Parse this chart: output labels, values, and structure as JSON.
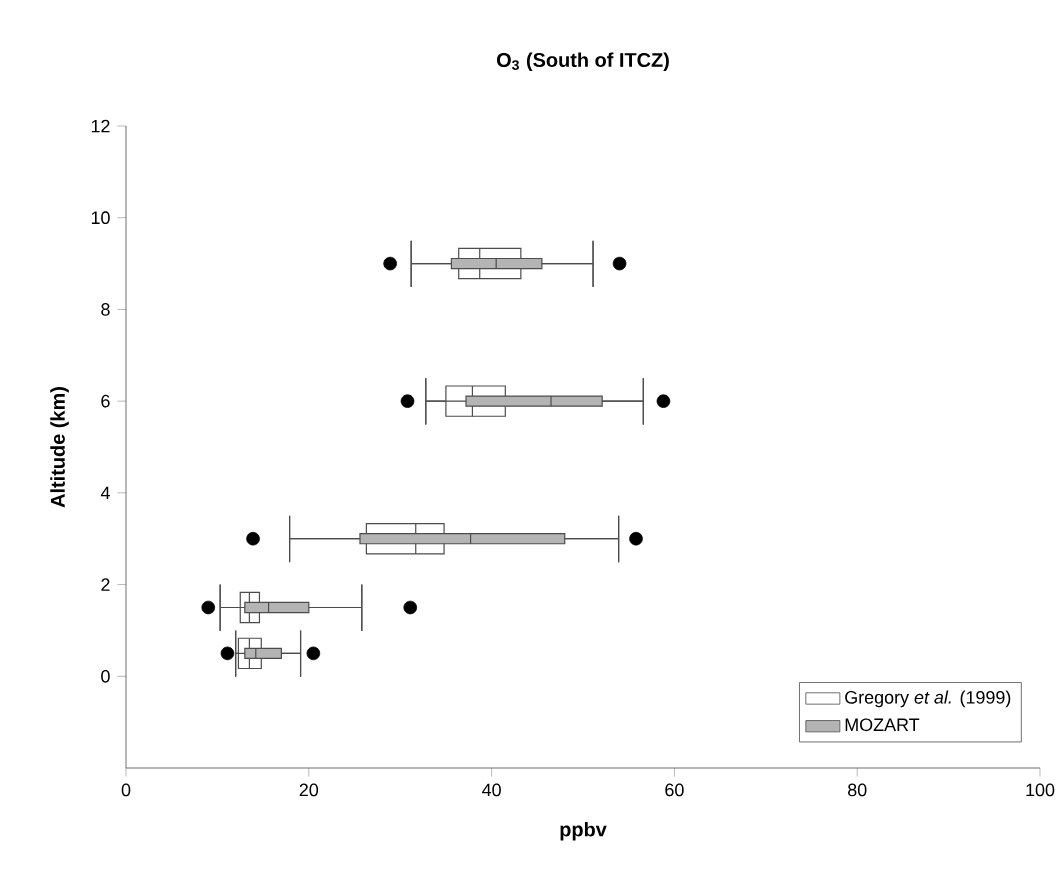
{
  "chart_data": {
    "type": "box",
    "orientation": "horizontal",
    "title": "O$_{3}$ (South of ITCZ)",
    "xlabel": "ppbv",
    "ylabel": "Altitude (km)",
    "xlim": [
      0,
      100
    ],
    "xticks": [
      0,
      20,
      40,
      60,
      80,
      100
    ],
    "ylim": [
      -2,
      12
    ],
    "yticks": [
      0,
      2,
      4,
      6,
      8,
      10,
      12
    ],
    "legend": "bottom right",
    "series": [
      {
        "name": "Gregory *et al.* (1999)",
        "color": "#ffffff",
        "x": [
          9,
          6,
          3,
          1.5,
          0.5
        ],
        "boxes": [
          {
            "low": 31.2,
            "q1": 36.4,
            "median": 38.7,
            "q3": 43.2,
            "high": 51.1,
            "outliers": [
              28.9,
              54.0
            ]
          },
          {
            "low": 32.8,
            "q1": 35.0,
            "median": 37.9,
            "q3": 41.5,
            "high": 56.6,
            "outliers": [
              30.8,
              58.8
            ]
          },
          {
            "low": 17.9,
            "q1": 26.3,
            "median": 31.7,
            "q3": 34.8,
            "high": 53.9,
            "outliers": [
              13.9,
              55.8
            ]
          },
          {
            "low": 10.3,
            "q1": 12.5,
            "median": 13.5,
            "q3": 14.6,
            "high": 25.8,
            "outliers": [
              9.0,
              31.1
            ]
          },
          {
            "low": 12.0,
            "q1": 12.3,
            "median": 13.5,
            "q3": 14.8,
            "high": 19.1,
            "outliers": [
              11.1,
              20.5
            ]
          }
        ]
      },
      {
        "name": "MOZART",
        "color": "#b4b4b4",
        "x": [
          9,
          6,
          3,
          1.5,
          0.5
        ],
        "boxes": [
          {
            "low": 31.2,
            "q1": 35.6,
            "median": 40.5,
            "q3": 45.5,
            "high": 51.1
          },
          {
            "low": 32.8,
            "q1": 37.2,
            "median": 46.5,
            "q3": 52.1,
            "high": 56.6
          },
          {
            "low": 17.9,
            "q1": 25.6,
            "median": 37.7,
            "q3": 48.0,
            "high": 53.9
          },
          {
            "low": 10.3,
            "q1": 13.0,
            "median": 15.6,
            "q3": 20.0,
            "high": 25.8
          },
          {
            "low": 12.0,
            "q1": 13.0,
            "median": 14.2,
            "q3": 17.0,
            "high": 19.1
          }
        ]
      }
    ]
  }
}
